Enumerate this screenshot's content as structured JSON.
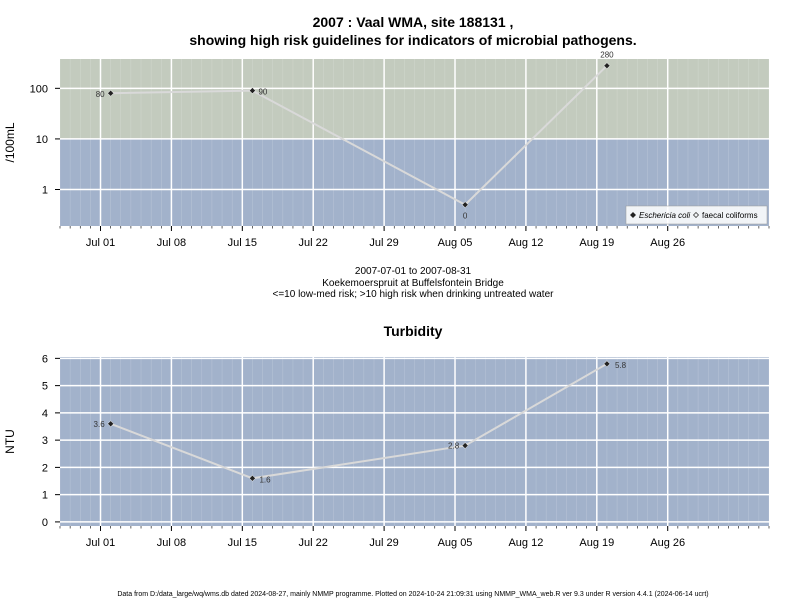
{
  "page": {
    "title_line1": "2007 : Vaal WMA, site 188131 ,",
    "title_line2": "showing high risk guidelines for indicators of microbial pathogens.",
    "info_line1": "2007-07-01 to 2007-08-31",
    "info_line2": "Koekemoerspruit at Buffelsfontein Bridge",
    "info_line3": "<=10 low-med risk; >10 high risk when drinking untreated water",
    "footer": "Data from D:/data_large/wq/wms.db dated 2024-08-27, mainly NMMP programme. Plotted on 2024-10-24 21:09:31 using NMMP_WMA_web.R ver 9.3 under R version 4.4.1 (2024-06-14 ucrt)"
  },
  "colors": {
    "high_risk_band": "#c3cbbe",
    "low_risk_band": "#a2b2cb",
    "plot_bg": "#a2b2cb",
    "grid": "#ffffff",
    "series_line": "#d9d9d9",
    "point": "#222222"
  },
  "chart_data": [
    {
      "type": "line",
      "title": "",
      "xlabel": "",
      "ylabel": "/100mL",
      "y_scale": "log",
      "ylim": [
        0.19,
        380
      ],
      "xlim": [
        "2007-06-27",
        "2007-09-05"
      ],
      "x_tick_labels": [
        "Jul 01",
        "Jul 08",
        "Jul 15",
        "Jul 22",
        "Jul 29",
        "Aug 05",
        "Aug 12",
        "Aug 19",
        "Aug 26"
      ],
      "x_ticks": [
        "2007-07-01",
        "2007-07-08",
        "2007-07-15",
        "2007-07-22",
        "2007-07-29",
        "2007-08-05",
        "2007-08-12",
        "2007-08-19",
        "2007-08-26"
      ],
      "y_ticks": [
        1,
        10,
        100
      ],
      "y_tick_labels": [
        "1",
        "10",
        "100"
      ],
      "grid": true,
      "risk_threshold": 10,
      "legend_position": "bottom-right",
      "legend": [
        {
          "label": "Eschericia coli",
          "marker": "filled-diamond",
          "italic": true
        },
        {
          "label": "faecal coliforms",
          "marker": "open-diamond",
          "italic": false
        }
      ],
      "series": [
        {
          "name": "Eschericia coli",
          "x": [
            "2007-07-02",
            "2007-07-16",
            "2007-08-06",
            "2007-08-20"
          ],
          "y": [
            80,
            90,
            0.5,
            280
          ],
          "data_labels": [
            "80",
            "90",
            "0",
            "280"
          ]
        }
      ]
    },
    {
      "type": "line",
      "title": "Turbidity",
      "xlabel": "",
      "ylabel": "NTU",
      "y_scale": "linear",
      "ylim": [
        -0.15,
        6.05
      ],
      "xlim": [
        "2007-06-27",
        "2007-09-05"
      ],
      "x_tick_labels": [
        "Jul 01",
        "Jul 08",
        "Jul 15",
        "Jul 22",
        "Jul 29",
        "Aug 05",
        "Aug 12",
        "Aug 19",
        "Aug 26"
      ],
      "x_ticks": [
        "2007-07-01",
        "2007-07-08",
        "2007-07-15",
        "2007-07-22",
        "2007-07-29",
        "2007-08-05",
        "2007-08-12",
        "2007-08-19",
        "2007-08-26"
      ],
      "y_ticks": [
        0,
        1,
        2,
        3,
        4,
        5,
        6
      ],
      "y_tick_labels": [
        "0",
        "1",
        "2",
        "3",
        "4",
        "5",
        "6"
      ],
      "grid": true,
      "series": [
        {
          "name": "",
          "x": [
            "2007-07-02",
            "2007-07-16",
            "2007-08-06",
            "2007-08-20"
          ],
          "y": [
            3.6,
            1.6,
            2.8,
            5.8
          ],
          "data_labels": [
            "3.6",
            "1.6",
            "2.8",
            "5.8"
          ]
        }
      ]
    }
  ]
}
